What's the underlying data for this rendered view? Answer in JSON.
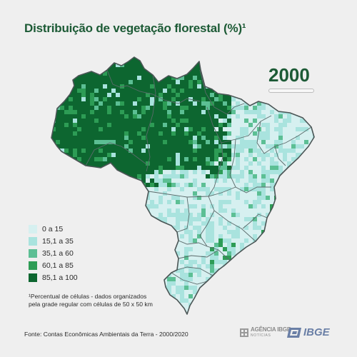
{
  "title": "Distribuição de vegetação florestal (%)¹",
  "year": "2000",
  "timeline_progress": 0.0,
  "legend": [
    {
      "label": "0 a 15",
      "color": "#d6f0f0"
    },
    {
      "label": "15,1 a 35",
      "color": "#a9e3de"
    },
    {
      "label": "35,1 a 60",
      "color": "#5cbf94"
    },
    {
      "label": "60,1 a 85",
      "color": "#2d9c55"
    },
    {
      "label": "85,1 a 100",
      "color": "#0d6630"
    }
  ],
  "footnote_line1": "¹Percentual de células - dados organizados",
  "footnote_line2": "pela grade regular com células de 50 x 50 km",
  "source": "Fonte: Contas Econômicas  Ambientais  da Terra - 2000/2020",
  "logo_agencia_line1": "AGÊNCIA IBGE",
  "logo_agencia_line2": "NOTÍCIAS",
  "logo_ibge": "IBGE"
}
